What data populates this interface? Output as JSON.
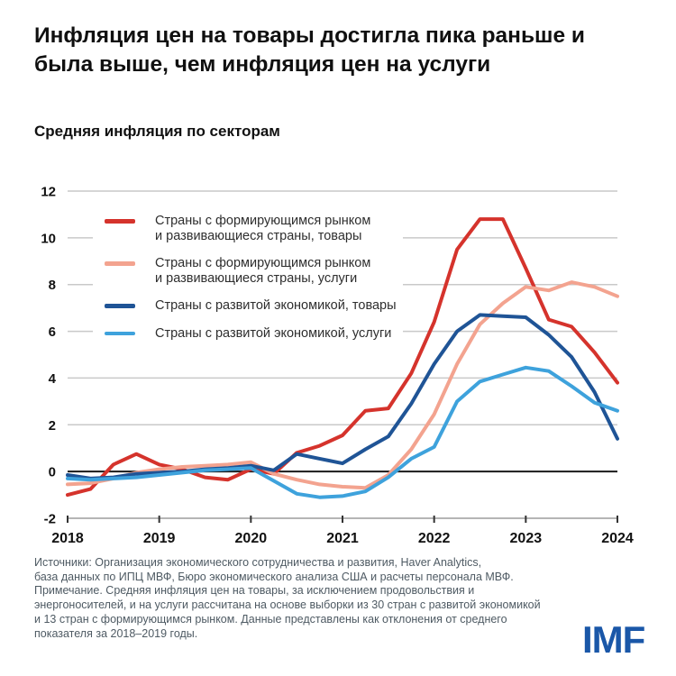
{
  "title": "Инфляция цен на товары достигла пика раньше и была выше, чем инфляция цен на услуги",
  "subtitle": "Средняя инфляция по секторам",
  "logo": "IMF",
  "footer": {
    "text": "Источники: Организация экономического сотрудничества и развития, Haver Analytics,\nбаза данных по ИПЦ МВФ, Бюро экономического анализа США и расчеты персонала МВФ.\nПримечание. Средняя инфляция цен на товары, за исключением продовольствия и\nэнергоносителей, и на услуги рассчитана на основе выборки из 30 стран с развитой экономикой\nи 13 стран с формирующимся рынком. Данные представлены как отклонения от среднего\nпоказателя за 2018–2019 годы."
  },
  "colors": {
    "emde_goods": "#d5332c",
    "emde_services": "#f3a38f",
    "ae_goods": "#1f5496",
    "ae_services": "#3ea2dc",
    "gridline": "#c9c9c9",
    "zero_line": "#1a1a1a",
    "axis_line": "#b5b5b5",
    "tick": "#333333",
    "axis_label": "#111111",
    "logo_blue": "#1a57a8"
  },
  "legend": {
    "items": [
      {
        "color": "#d5332c",
        "label": "Страны с формирующимся рынком\nи развивающиеся страны, товары"
      },
      {
        "color": "#f3a38f",
        "label": "Страны с формирующимся рынком\nи развивающиеся страны, услуги"
      },
      {
        "color": "#1f5496",
        "label": "Страны с развитой экономикой, товары"
      },
      {
        "color": "#3ea2dc",
        "label": "Страны с развитой экономикой, услуги"
      }
    ]
  },
  "chart_data": {
    "type": "line",
    "title": "Средняя инфляция по секторам",
    "xlabel": "",
    "ylabel": "",
    "xlim": [
      2018,
      2024
    ],
    "ylim": [
      -2,
      12
    ],
    "yticks": [
      -2,
      0,
      2,
      4,
      6,
      8,
      10,
      12
    ],
    "xticks": [
      2018,
      2019,
      2020,
      2021,
      2022,
      2023,
      2024
    ],
    "grid": true,
    "legend_position": "top-left-inset",
    "x": [
      2018.0,
      2018.25,
      2018.5,
      2018.75,
      2019.0,
      2019.25,
      2019.5,
      2019.75,
      2020.0,
      2020.25,
      2020.5,
      2020.75,
      2021.0,
      2021.25,
      2021.5,
      2021.75,
      2022.0,
      2022.25,
      2022.5,
      2022.75,
      2023.0,
      2023.25,
      2023.5,
      2023.75,
      2024.0
    ],
    "series": [
      {
        "name": "Страны с формирующимся рынком и развивающиеся страны, товары",
        "color": "#d5332c",
        "values": [
          -1.0,
          -0.75,
          0.3,
          0.75,
          0.3,
          0.1,
          -0.25,
          -0.35,
          0.1,
          -0.1,
          0.8,
          1.1,
          1.55,
          2.6,
          2.7,
          4.2,
          6.4,
          9.5,
          10.8,
          10.8,
          8.7,
          6.5,
          6.2,
          5.1,
          3.8
        ]
      },
      {
        "name": "Страны с формирующимся рынком и развивающиеся страны, услуги",
        "color": "#f3a38f",
        "values": [
          -0.55,
          -0.5,
          -0.3,
          -0.05,
          0.1,
          0.2,
          0.25,
          0.3,
          0.4,
          -0.1,
          -0.35,
          -0.55,
          -0.65,
          -0.7,
          -0.15,
          0.95,
          2.45,
          4.6,
          6.3,
          7.2,
          7.9,
          7.75,
          8.1,
          7.9,
          7.5
        ]
      },
      {
        "name": "Страны с развитой экономикой, товары",
        "color": "#1f5496",
        "values": [
          -0.15,
          -0.3,
          -0.25,
          -0.1,
          -0.05,
          0.0,
          0.1,
          0.15,
          0.25,
          0.05,
          0.75,
          0.55,
          0.35,
          0.95,
          1.5,
          2.9,
          4.6,
          6.0,
          6.7,
          6.65,
          6.6,
          5.85,
          4.9,
          3.4,
          1.4
        ]
      },
      {
        "name": "Страны с развитой экономикой, услуги",
        "color": "#3ea2dc",
        "values": [
          -0.3,
          -0.35,
          -0.3,
          -0.25,
          -0.15,
          -0.05,
          0.05,
          0.1,
          0.15,
          -0.4,
          -0.95,
          -1.1,
          -1.05,
          -0.85,
          -0.25,
          0.55,
          1.05,
          3.0,
          3.85,
          4.15,
          4.45,
          4.3,
          3.65,
          2.95,
          2.6
        ]
      }
    ]
  }
}
